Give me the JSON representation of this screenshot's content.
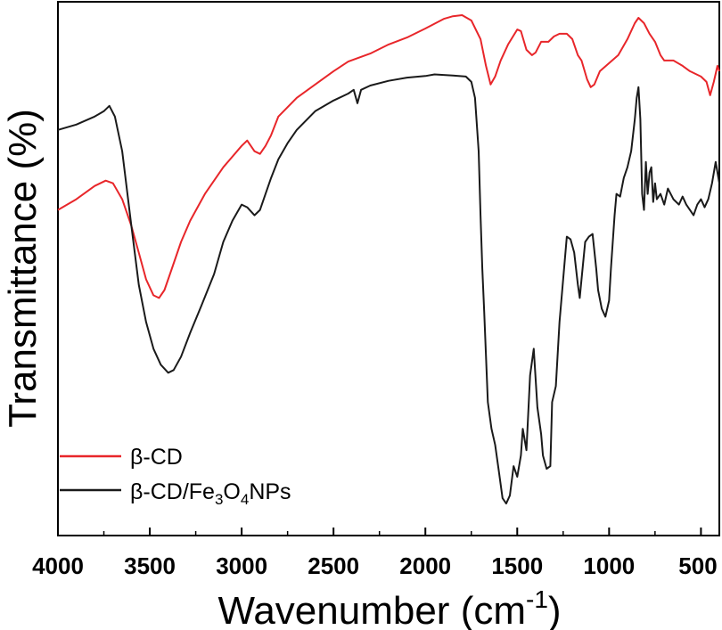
{
  "chart_data": {
    "type": "line",
    "title": "",
    "xlabel": "Wavenumber (cm",
    "xlabel_sup": "-1",
    "xlabel_close": ")",
    "ylabel": "Transmittance (%)",
    "xlim": [
      4000,
      400
    ],
    "ylim": [
      0,
      100
    ],
    "xticks": [
      4000,
      3500,
      3000,
      2500,
      2000,
      1500,
      1000,
      500
    ],
    "x_reversed": true,
    "y_tick_labels_shown": false,
    "legend_position": "bottom-left",
    "series": [
      {
        "name": "β-CD",
        "color": "#e8262a",
        "points": [
          [
            4000,
            61
          ],
          [
            3900,
            63
          ],
          [
            3800,
            65.5
          ],
          [
            3740,
            66.5
          ],
          [
            3700,
            66
          ],
          [
            3650,
            63
          ],
          [
            3600,
            58
          ],
          [
            3560,
            53
          ],
          [
            3520,
            48
          ],
          [
            3480,
            45
          ],
          [
            3450,
            44.5
          ],
          [
            3420,
            46
          ],
          [
            3380,
            50
          ],
          [
            3330,
            55
          ],
          [
            3280,
            59
          ],
          [
            3200,
            64
          ],
          [
            3100,
            69
          ],
          [
            3000,
            73
          ],
          [
            2970,
            74
          ],
          [
            2930,
            72
          ],
          [
            2900,
            71.5
          ],
          [
            2870,
            73
          ],
          [
            2840,
            75
          ],
          [
            2800,
            78.5
          ],
          [
            2700,
            82
          ],
          [
            2600,
            84.5
          ],
          [
            2500,
            87
          ],
          [
            2420,
            88.8
          ],
          [
            2380,
            89.3
          ],
          [
            2300,
            90.3
          ],
          [
            2200,
            92
          ],
          [
            2100,
            93.3
          ],
          [
            2000,
            95
          ],
          [
            1900,
            96.8
          ],
          [
            1850,
            97.3
          ],
          [
            1800,
            97.5
          ],
          [
            1750,
            96.5
          ],
          [
            1700,
            93
          ],
          [
            1670,
            88
          ],
          [
            1645,
            84.5
          ],
          [
            1620,
            86
          ],
          [
            1590,
            89
          ],
          [
            1550,
            92
          ],
          [
            1500,
            94.8
          ],
          [
            1480,
            94.5
          ],
          [
            1450,
            91
          ],
          [
            1420,
            90
          ],
          [
            1400,
            90.5
          ],
          [
            1370,
            92.5
          ],
          [
            1330,
            92.5
          ],
          [
            1300,
            93.5
          ],
          [
            1270,
            94
          ],
          [
            1230,
            94
          ],
          [
            1200,
            93
          ],
          [
            1170,
            90
          ],
          [
            1150,
            89
          ],
          [
            1120,
            85.5
          ],
          [
            1100,
            84
          ],
          [
            1080,
            84.5
          ],
          [
            1050,
            87
          ],
          [
            1000,
            88.5
          ],
          [
            950,
            90
          ],
          [
            900,
            93
          ],
          [
            860,
            96
          ],
          [
            840,
            97
          ],
          [
            810,
            96
          ],
          [
            780,
            94
          ],
          [
            750,
            92.5
          ],
          [
            720,
            90
          ],
          [
            700,
            89
          ],
          [
            650,
            89
          ],
          [
            600,
            88
          ],
          [
            560,
            87
          ],
          [
            530,
            86.5
          ],
          [
            500,
            86
          ],
          [
            470,
            85
          ],
          [
            450,
            82.5
          ],
          [
            430,
            85
          ],
          [
            410,
            88
          ],
          [
            400,
            87
          ]
        ]
      },
      {
        "name": "β-CD/Fe3O4NPs",
        "color": "#1a1a1a",
        "points": [
          [
            4000,
            76
          ],
          [
            3900,
            77
          ],
          [
            3800,
            78.5
          ],
          [
            3750,
            79.5
          ],
          [
            3720,
            80.5
          ],
          [
            3690,
            78.5
          ],
          [
            3650,
            72
          ],
          [
            3600,
            58
          ],
          [
            3560,
            47
          ],
          [
            3520,
            40
          ],
          [
            3480,
            35
          ],
          [
            3440,
            32
          ],
          [
            3400,
            30.5
          ],
          [
            3370,
            31
          ],
          [
            3330,
            33.5
          ],
          [
            3280,
            38
          ],
          [
            3220,
            43
          ],
          [
            3150,
            49
          ],
          [
            3100,
            55
          ],
          [
            3050,
            59
          ],
          [
            3000,
            62
          ],
          [
            2970,
            61.5
          ],
          [
            2930,
            60
          ],
          [
            2900,
            61
          ],
          [
            2870,
            64
          ],
          [
            2840,
            67
          ],
          [
            2800,
            70.5
          ],
          [
            2750,
            73.5
          ],
          [
            2700,
            76
          ],
          [
            2600,
            79.5
          ],
          [
            2500,
            81.5
          ],
          [
            2420,
            82.8
          ],
          [
            2390,
            83.5
          ],
          [
            2370,
            81
          ],
          [
            2350,
            83.5
          ],
          [
            2300,
            84.3
          ],
          [
            2200,
            85.2
          ],
          [
            2100,
            85.8
          ],
          [
            2000,
            86.1
          ],
          [
            1950,
            86.4
          ],
          [
            1900,
            86.3
          ],
          [
            1850,
            86.2
          ],
          [
            1780,
            86
          ],
          [
            1750,
            85
          ],
          [
            1730,
            82
          ],
          [
            1710,
            72
          ],
          [
            1700,
            60
          ],
          [
            1690,
            50
          ],
          [
            1680,
            42
          ],
          [
            1660,
            25
          ],
          [
            1640,
            20
          ],
          [
            1620,
            17
          ],
          [
            1600,
            12
          ],
          [
            1580,
            7
          ],
          [
            1560,
            6
          ],
          [
            1540,
            7.5
          ],
          [
            1520,
            13
          ],
          [
            1500,
            11
          ],
          [
            1480,
            15
          ],
          [
            1470,
            20
          ],
          [
            1450,
            16
          ],
          [
            1430,
            30
          ],
          [
            1410,
            35
          ],
          [
            1390,
            24
          ],
          [
            1370,
            19
          ],
          [
            1360,
            15
          ],
          [
            1340,
            12.5
          ],
          [
            1320,
            13
          ],
          [
            1310,
            25
          ],
          [
            1290,
            28
          ],
          [
            1270,
            40
          ],
          [
            1250,
            48
          ],
          [
            1230,
            56
          ],
          [
            1210,
            55.5
          ],
          [
            1190,
            53
          ],
          [
            1170,
            47
          ],
          [
            1160,
            44.5
          ],
          [
            1150,
            48
          ],
          [
            1130,
            55
          ],
          [
            1110,
            56
          ],
          [
            1090,
            56.5
          ],
          [
            1070,
            50
          ],
          [
            1060,
            46
          ],
          [
            1040,
            42.5
          ],
          [
            1020,
            41
          ],
          [
            1000,
            44
          ],
          [
            990,
            50
          ],
          [
            970,
            60
          ],
          [
            960,
            64
          ],
          [
            940,
            63.5
          ],
          [
            920,
            67
          ],
          [
            900,
            69
          ],
          [
            880,
            72
          ],
          [
            860,
            78
          ],
          [
            850,
            82
          ],
          [
            840,
            84
          ],
          [
            830,
            78
          ],
          [
            820,
            64
          ],
          [
            810,
            61
          ],
          [
            800,
            70
          ],
          [
            790,
            64
          ],
          [
            780,
            68
          ],
          [
            770,
            69
          ],
          [
            760,
            62.5
          ],
          [
            750,
            66
          ],
          [
            740,
            63
          ],
          [
            720,
            64
          ],
          [
            700,
            62
          ],
          [
            680,
            65
          ],
          [
            650,
            63
          ],
          [
            620,
            62
          ],
          [
            600,
            63.5
          ],
          [
            580,
            62
          ],
          [
            560,
            61
          ],
          [
            540,
            60
          ],
          [
            520,
            62
          ],
          [
            500,
            63
          ],
          [
            480,
            61.5
          ],
          [
            460,
            63
          ],
          [
            440,
            66
          ],
          [
            420,
            70
          ],
          [
            400,
            66
          ]
        ]
      }
    ]
  }
}
